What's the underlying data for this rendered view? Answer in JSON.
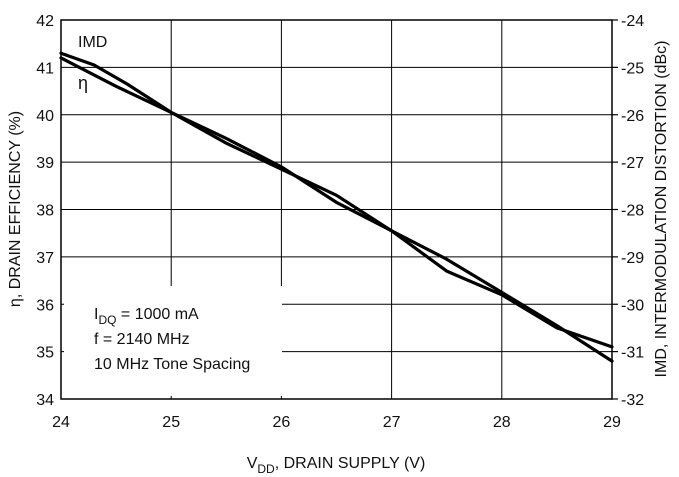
{
  "chart_data": {
    "type": "line",
    "xlabel": {
      "main": "V",
      "sub": "DD",
      "rest": ", DRAIN SUPPLY (V)"
    },
    "ylabel_left": "η, DRAIN EFFICIENCY (%)",
    "ylabel_right": "IMD, INTERMODULATION DISTORTION (dBc)",
    "xlim": [
      24,
      29
    ],
    "ylim_left": [
      34,
      42
    ],
    "ylim_right": [
      -32,
      -24
    ],
    "x_ticks": [
      "24",
      "25",
      "26",
      "27",
      "28",
      "29"
    ],
    "y_left_ticks": [
      "34",
      "35",
      "36",
      "37",
      "38",
      "39",
      "40",
      "41",
      "42"
    ],
    "y_right_ticks": [
      "-32",
      "-31",
      "-30",
      "-29",
      "-28",
      "-27",
      "-26",
      "-25",
      "-24"
    ],
    "grid": true,
    "series": [
      {
        "name": "IMD",
        "axis": "right",
        "x": [
          24,
          24.3,
          24.6,
          25,
          25.5,
          26,
          26.5,
          27,
          27.5,
          28,
          28.5,
          29
        ],
        "y": [
          -24.7,
          -24.95,
          -25.35,
          -25.95,
          -26.5,
          -27.1,
          -27.85,
          -28.45,
          -29.05,
          -29.75,
          -30.45,
          -31.2
        ]
      },
      {
        "name": "η",
        "axis": "left",
        "x": [
          24,
          24.5,
          25,
          25.5,
          26,
          26.5,
          27,
          27.5,
          28,
          28.5,
          29
        ],
        "y": [
          41.2,
          40.6,
          40.05,
          39.4,
          38.85,
          38.3,
          37.55,
          36.7,
          36.2,
          35.5,
          35.1
        ]
      }
    ],
    "annotations": {
      "curve_label_imd": "IMD",
      "curve_label_eta": "η",
      "note_line1": {
        "main": "I",
        "sub": "DQ",
        "rest": " = 1000 mA"
      },
      "note_line2": "f = 2140 MHz",
      "note_line3": "10 MHz Tone Spacing"
    }
  }
}
